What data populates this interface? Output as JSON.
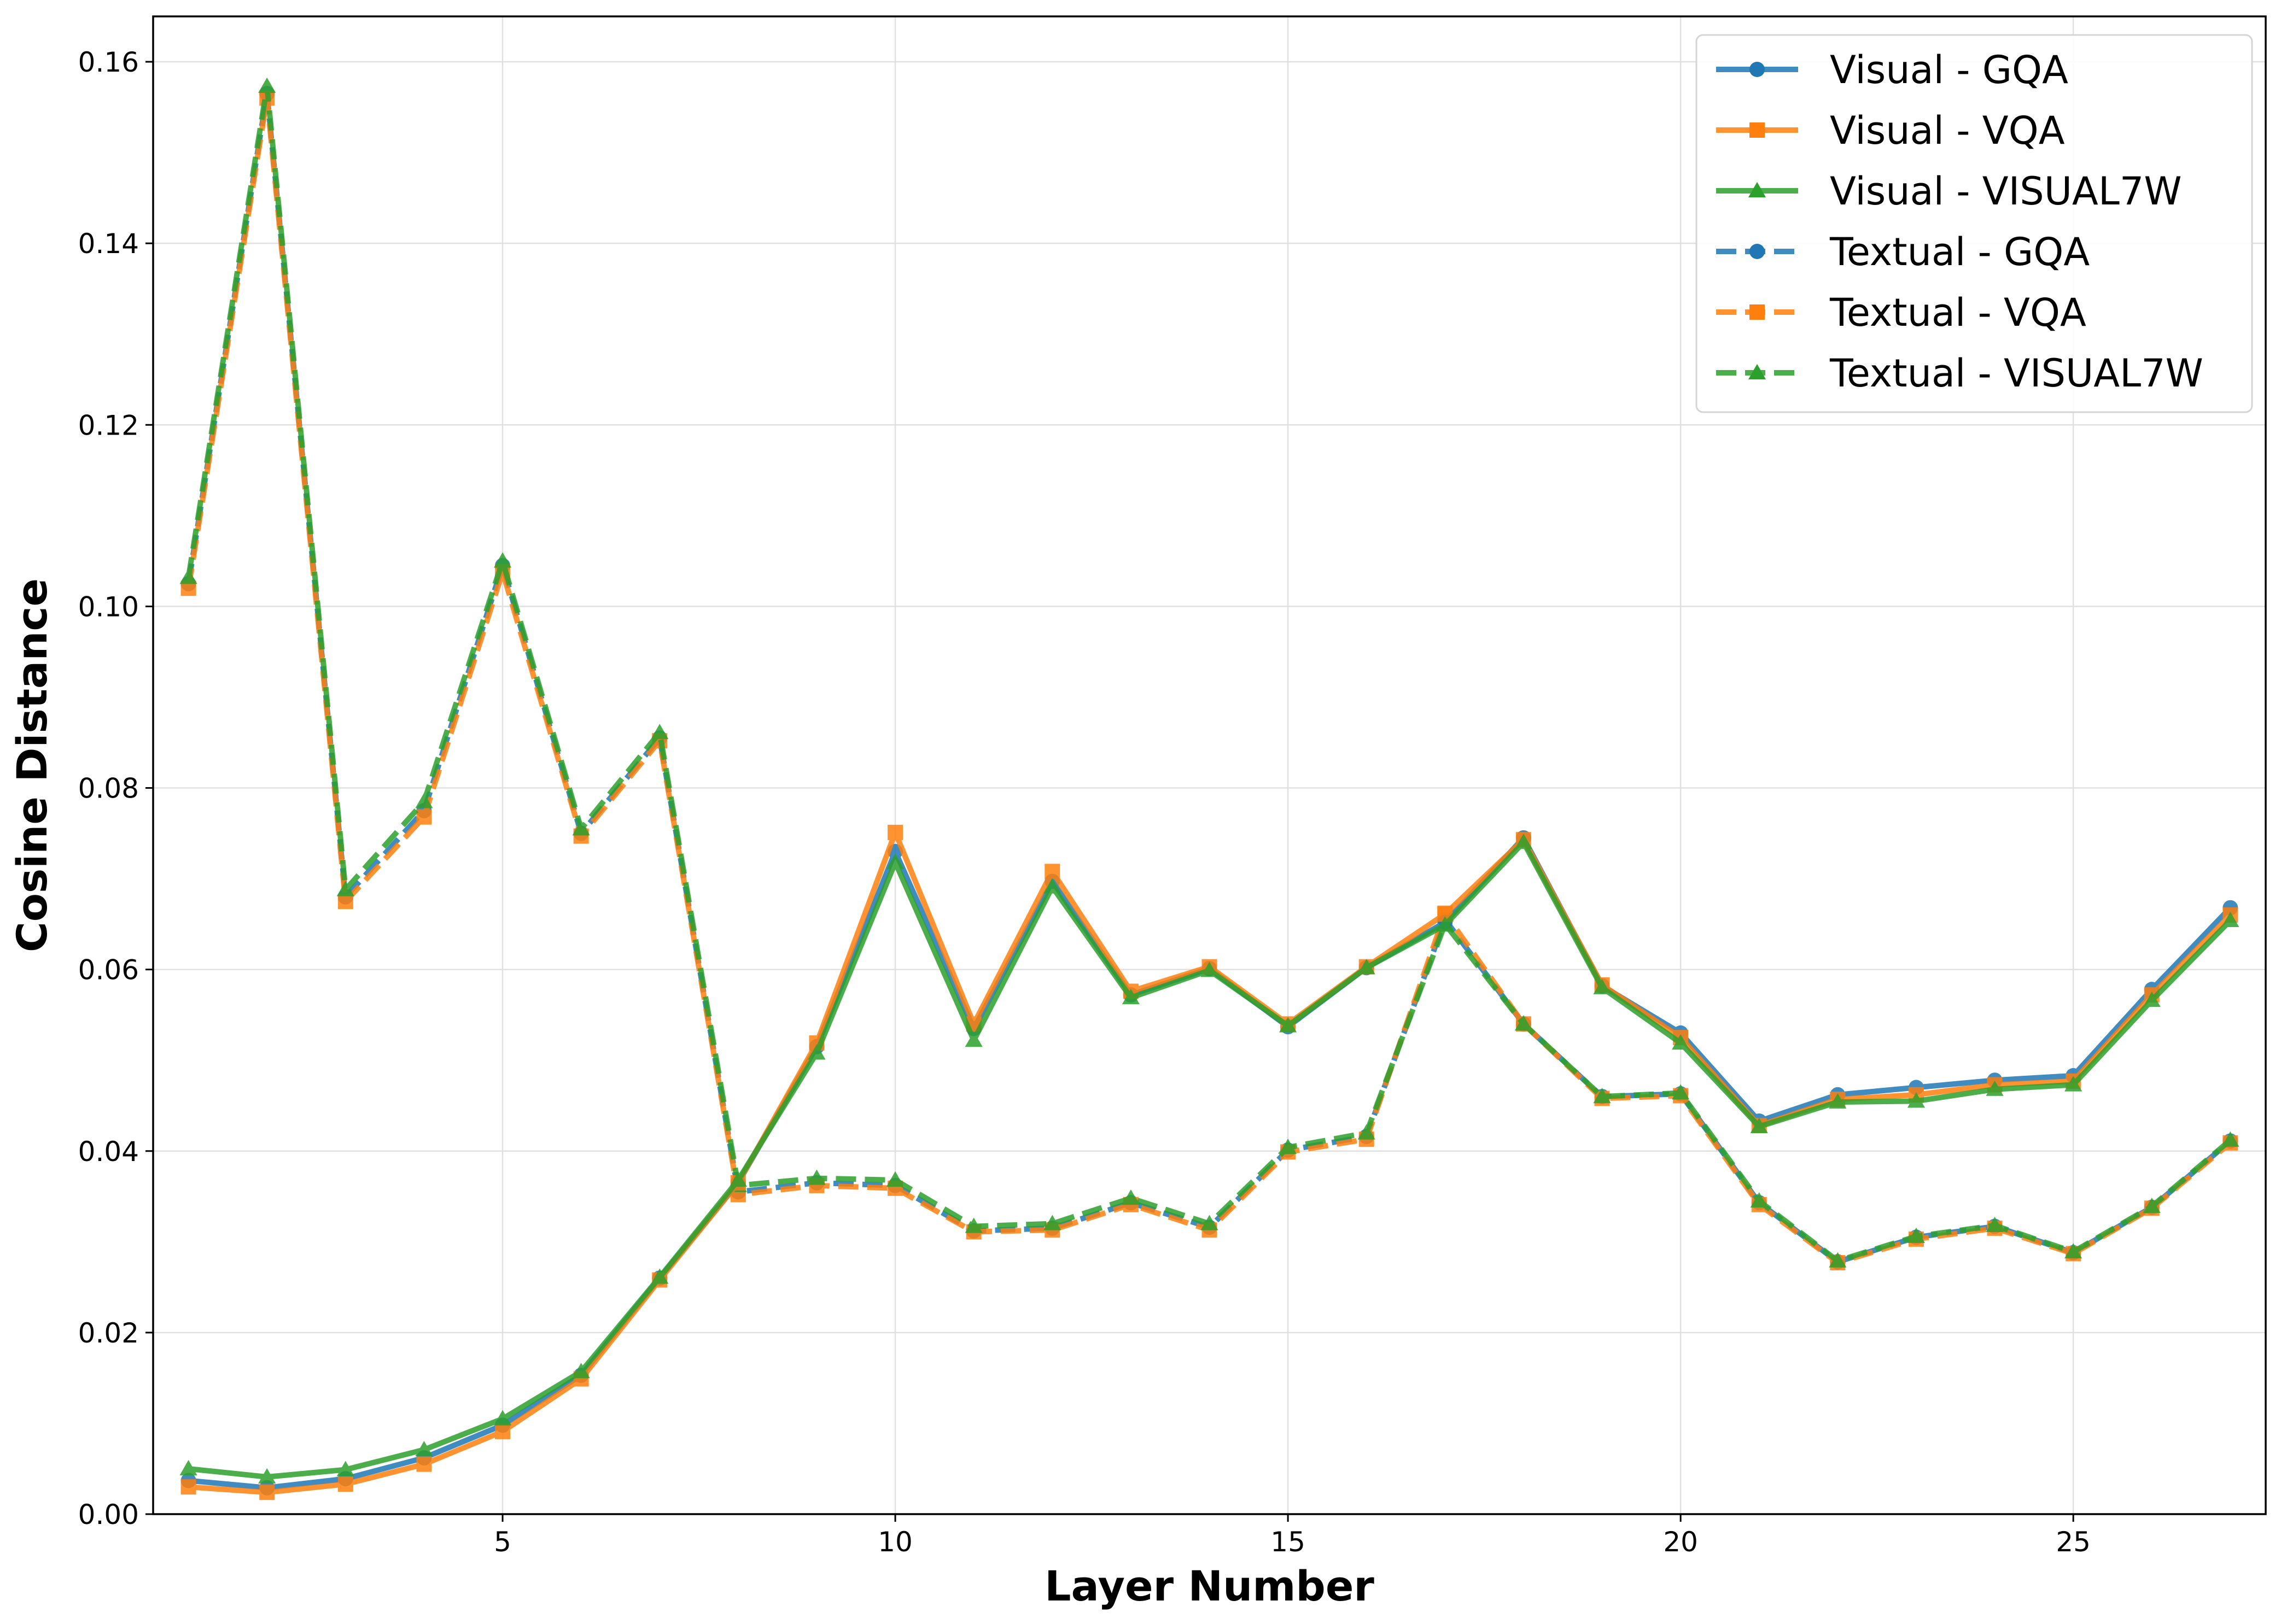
{
  "chart_data": {
    "type": "line",
    "title": "",
    "xlabel": "Layer Number",
    "ylabel": "Cosine Distance",
    "xlim": [
      0.55,
      27.45
    ],
    "ylim": [
      0.0,
      0.165
    ],
    "xticks": [
      5,
      10,
      15,
      20,
      25
    ],
    "xtick_labels": [
      "5",
      "10",
      "15",
      "20",
      "25"
    ],
    "yticks": [
      0.0,
      0.02,
      0.04,
      0.06,
      0.08,
      0.1,
      0.12,
      0.14,
      0.16
    ],
    "ytick_labels": [
      "0.00",
      "0.02",
      "0.04",
      "0.06",
      "0.08",
      "0.10",
      "0.12",
      "0.14",
      "0.16"
    ],
    "grid": true,
    "legend_position": "top-right",
    "x": [
      1,
      2,
      3,
      4,
      5,
      6,
      7,
      8,
      9,
      10,
      11,
      12,
      13,
      14,
      15,
      16,
      17,
      18,
      19,
      20,
      21,
      22,
      23,
      24,
      25,
      26,
      27
    ],
    "series": [
      {
        "name": "Visual - GQA",
        "color": "#1f77b4",
        "line_style": "solid",
        "marker": "circle",
        "values": [
          0.0037,
          0.0029,
          0.0039,
          0.0062,
          0.0098,
          0.0153,
          0.026,
          0.0365,
          0.0515,
          0.073,
          0.0535,
          0.0697,
          0.0572,
          0.0601,
          0.0537,
          0.0602,
          0.0652,
          0.0745,
          0.0582,
          0.053,
          0.0433,
          0.0462,
          0.047,
          0.0478,
          0.0483,
          0.0578,
          0.0668
        ]
      },
      {
        "name": "Visual - VQA",
        "color": "#ff7f0e",
        "line_style": "solid",
        "marker": "square",
        "values": [
          0.003,
          0.0024,
          0.0033,
          0.0055,
          0.0091,
          0.0149,
          0.0258,
          0.0365,
          0.0519,
          0.0751,
          0.054,
          0.0708,
          0.0576,
          0.0603,
          0.054,
          0.0603,
          0.0661,
          0.0743,
          0.0583,
          0.0525,
          0.0428,
          0.0457,
          0.0462,
          0.0473,
          0.0477,
          0.0572,
          0.066
        ]
      },
      {
        "name": "Visual - VISUAL7W",
        "color": "#2ca02c",
        "line_style": "solid",
        "marker": "triangle",
        "values": [
          0.005,
          0.0041,
          0.0049,
          0.0071,
          0.0105,
          0.0157,
          0.0261,
          0.0368,
          0.0508,
          0.0718,
          0.0522,
          0.0691,
          0.0569,
          0.0599,
          0.0538,
          0.0602,
          0.0649,
          0.074,
          0.058,
          0.0519,
          0.0427,
          0.0454,
          0.0455,
          0.0468,
          0.0473,
          0.0566,
          0.0654
        ]
      },
      {
        "name": "Textual - GQA",
        "color": "#1f77b4",
        "line_style": "dashed",
        "marker": "circle",
        "values": [
          0.1025,
          0.1565,
          0.068,
          0.0775,
          0.1045,
          0.075,
          0.0855,
          0.0355,
          0.0365,
          0.0362,
          0.0312,
          0.0315,
          0.0343,
          0.0316,
          0.0401,
          0.0416,
          0.0655,
          0.054,
          0.046,
          0.0463,
          0.0343,
          0.0278,
          0.0305,
          0.0317,
          0.0288,
          0.0338,
          0.0411
        ]
      },
      {
        "name": "Textual - VQA",
        "color": "#ff7f0e",
        "line_style": "dashed",
        "marker": "square",
        "values": [
          0.102,
          0.156,
          0.0675,
          0.0768,
          0.1038,
          0.0747,
          0.0852,
          0.0352,
          0.0362,
          0.0359,
          0.0311,
          0.0313,
          0.0341,
          0.0313,
          0.0399,
          0.0413,
          0.0662,
          0.054,
          0.0458,
          0.0461,
          0.0341,
          0.0277,
          0.0303,
          0.0315,
          0.0287,
          0.0337,
          0.0409
        ]
      },
      {
        "name": "Textual - VISUAL7W",
        "color": "#2ca02c",
        "line_style": "dashed",
        "marker": "triangle",
        "values": [
          0.1032,
          0.1573,
          0.0688,
          0.0785,
          0.105,
          0.0755,
          0.0861,
          0.0362,
          0.037,
          0.0368,
          0.0317,
          0.032,
          0.0348,
          0.032,
          0.0404,
          0.042,
          0.065,
          0.054,
          0.046,
          0.0464,
          0.0345,
          0.0279,
          0.0306,
          0.0318,
          0.0289,
          0.0339,
          0.0412
        ]
      }
    ]
  }
}
